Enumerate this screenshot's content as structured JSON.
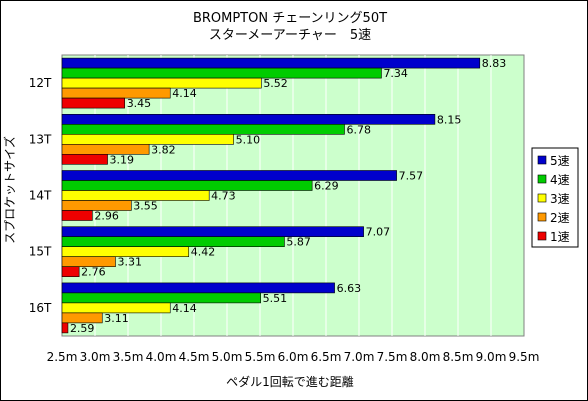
{
  "chart_data": {
    "type": "bar",
    "orientation": "horizontal",
    "title": [
      "BROMPTON チェーンリング50T",
      "スターメーアーチャー　5速"
    ],
    "xlabel": "ペダル1回転で進む距離",
    "ylabel": "スプロケットサイズ",
    "xlim": [
      2.5,
      9.5
    ],
    "xtick_labels": [
      "2.5m",
      "3.0m",
      "3.5m",
      "4.0m",
      "4.5m",
      "5.0m",
      "5.5m",
      "6.0m",
      "6.5m",
      "7.0m",
      "7.5m",
      "8.0m",
      "8.5m",
      "9.0m",
      "9.5m"
    ],
    "categories": [
      "12T",
      "13T",
      "14T",
      "15T",
      "16T"
    ],
    "series": [
      {
        "name": "5速",
        "color": "#0000cc",
        "values": [
          8.83,
          8.15,
          7.57,
          7.07,
          6.63
        ],
        "labels": [
          "8.83",
          "8.15",
          "7.57",
          "7.07",
          "6.63"
        ]
      },
      {
        "name": "4速",
        "color": "#00cc00",
        "values": [
          7.34,
          6.78,
          6.29,
          5.87,
          5.51
        ],
        "labels": [
          "7.34",
          "6.78",
          "6.29",
          "5.87",
          "5.51"
        ]
      },
      {
        "name": "3速",
        "color": "#ffff00",
        "values": [
          5.52,
          5.1,
          4.73,
          4.42,
          4.14
        ],
        "labels": [
          "5.52",
          "5.10",
          "4.73",
          "4.42",
          "4.14"
        ]
      },
      {
        "name": "2速",
        "color": "#ff9900",
        "values": [
          4.14,
          3.82,
          3.55,
          3.31,
          3.11
        ],
        "labels": [
          "4.14",
          "3.82",
          "3.55",
          "3.31",
          "3.11"
        ]
      },
      {
        "name": "1速",
        "color": "#ee0000",
        "values": [
          3.45,
          3.19,
          2.96,
          2.76,
          2.59
        ],
        "labels": [
          "3.45",
          "3.19",
          "2.96",
          "2.76",
          "2.59"
        ]
      }
    ],
    "plot_background": "#ccffcc",
    "grid": true,
    "legend_position": "right"
  }
}
